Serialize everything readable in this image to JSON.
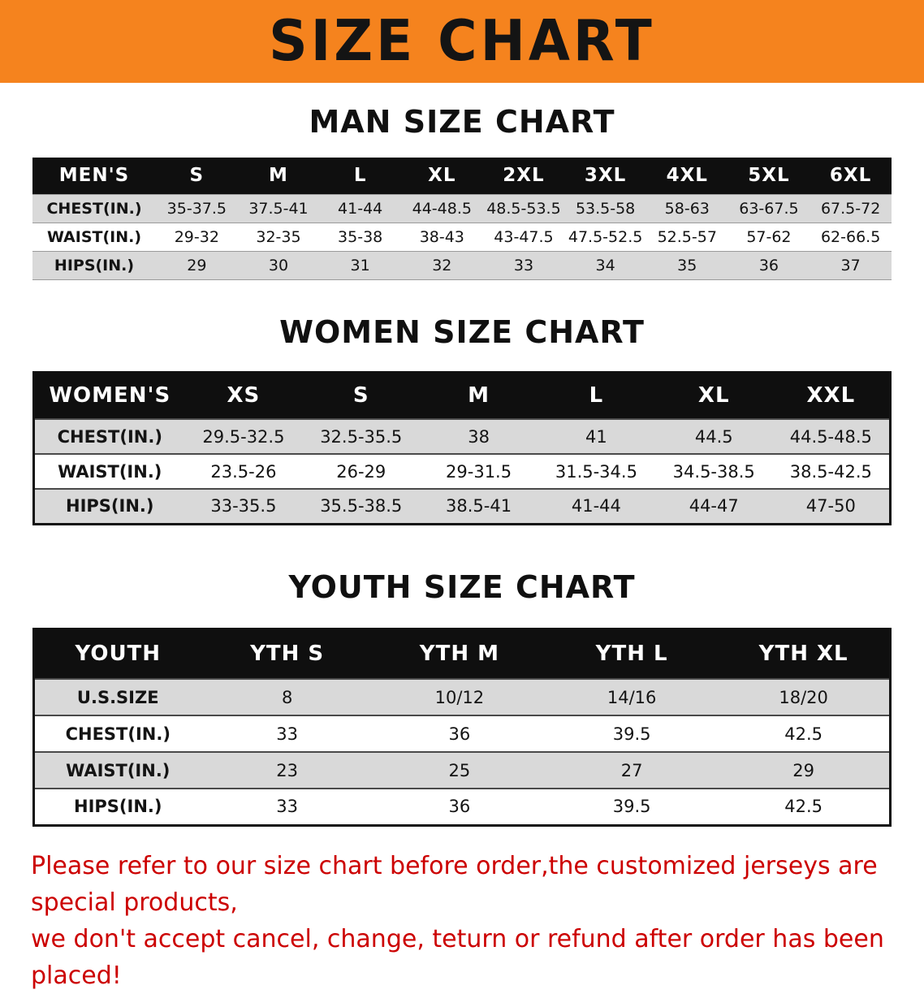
{
  "banner": {
    "title": "SIZE CHART"
  },
  "sections": [
    {
      "heading": "MAN SIZE CHART",
      "table_name": "mens",
      "header": [
        "MEN'S",
        "S",
        "M",
        "L",
        "XL",
        "2XL",
        "3XL",
        "4XL",
        "5XL",
        "6XL"
      ],
      "rows": [
        [
          "CHEST(IN.)",
          "35-37.5",
          "37.5-41",
          "41-44",
          "44-48.5",
          "48.5-53.5",
          "53.5-58",
          "58-63",
          "63-67.5",
          "67.5-72"
        ],
        [
          "WAIST(IN.)",
          "29-32",
          "32-35",
          "35-38",
          "38-43",
          "43-47.5",
          "47.5-52.5",
          "52.5-57",
          "57-62",
          "62-66.5"
        ],
        [
          "HIPS(IN.)",
          "29",
          "30",
          "31",
          "32",
          "33",
          "34",
          "35",
          "36",
          "37"
        ]
      ]
    },
    {
      "heading": "WOMEN SIZE CHART",
      "table_name": "womens",
      "header": [
        "WOMEN'S",
        "XS",
        "S",
        "M",
        "L",
        "XL",
        "XXL"
      ],
      "rows": [
        [
          "CHEST(IN.)",
          "29.5-32.5",
          "32.5-35.5",
          "38",
          "41",
          "44.5",
          "44.5-48.5"
        ],
        [
          "WAIST(IN.)",
          "23.5-26",
          "26-29",
          "29-31.5",
          "31.5-34.5",
          "34.5-38.5",
          "38.5-42.5"
        ],
        [
          "HIPS(IN.)",
          "33-35.5",
          "35.5-38.5",
          "38.5-41",
          "41-44",
          "44-47",
          "47-50"
        ]
      ]
    },
    {
      "heading": "YOUTH SIZE CHART",
      "table_name": "youth",
      "header": [
        "YOUTH",
        "YTH S",
        "YTH M",
        "YTH L",
        "YTH XL"
      ],
      "rows": [
        [
          "U.S.SIZE",
          "8",
          "10/12",
          "14/16",
          "18/20"
        ],
        [
          "CHEST(IN.)",
          "33",
          "36",
          "39.5",
          "42.5"
        ],
        [
          "WAIST(IN.)",
          "23",
          "25",
          "27",
          "29"
        ],
        [
          "HIPS(IN.)",
          "33",
          "36",
          "39.5",
          "42.5"
        ]
      ]
    }
  ],
  "footer": {
    "line1": "Please refer to our size chart before order,the customized jerseys are special products,",
    "line2": "we don't accept cancel, change, teturn or refund after order has been placed!"
  },
  "colors": {
    "banner_orange": "#f5831e",
    "header_black": "#0f0f0f",
    "stripe_gray": "#d9d9d9",
    "footer_red": "#cc0000"
  }
}
